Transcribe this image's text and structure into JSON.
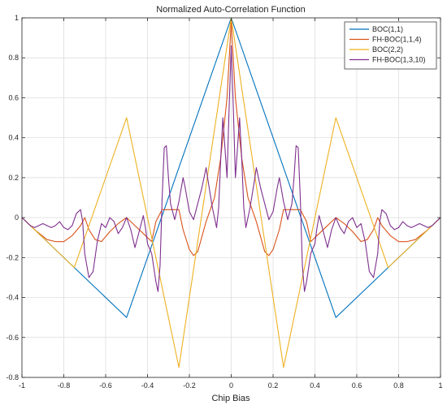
{
  "chart_data": {
    "type": "line",
    "title": "Normalized Auto-Correlation Function",
    "xlabel": "Chip Bias",
    "ylabel": "",
    "xlim": [
      -1,
      1
    ],
    "ylim": [
      -0.8,
      1
    ],
    "xticks": [
      -1,
      -0.8,
      -0.6,
      -0.4,
      -0.2,
      0,
      0.2,
      0.4,
      0.6,
      0.8,
      1
    ],
    "xticklabels": [
      "-1",
      "-0.8",
      "-0.6",
      "-0.4",
      "-0.2",
      "0",
      "0.2",
      "0.4",
      "0.6",
      "0.8",
      "1"
    ],
    "yticks": [
      -0.8,
      -0.6,
      -0.4,
      -0.2,
      0,
      0.2,
      0.4,
      0.6,
      0.8,
      1
    ],
    "yticklabels": [
      "-0.8",
      "-0.6",
      "-0.4",
      "-0.2",
      "0",
      "0.2",
      "0.4",
      "0.6",
      "0.8",
      "1"
    ],
    "grid": true,
    "legend_position": "top-right",
    "series": [
      {
        "name": "BOC(1,1)",
        "color": "#0072BD",
        "points": [
          [
            -1,
            0
          ],
          [
            -0.5,
            -0.5
          ],
          [
            0,
            1
          ],
          [
            0.5,
            -0.5
          ],
          [
            1,
            0
          ]
        ]
      },
      {
        "name": "FH-BOC(1,1,4)",
        "color": "#D95319",
        "points": [
          [
            -1,
            0
          ],
          [
            -0.94,
            -0.06
          ],
          [
            -0.88,
            -0.11
          ],
          [
            -0.84,
            -0.12
          ],
          [
            -0.8,
            -0.12
          ],
          [
            -0.76,
            -0.09
          ],
          [
            -0.72,
            -0.04
          ],
          [
            -0.7,
            0
          ],
          [
            -0.68,
            -0.06
          ],
          [
            -0.65,
            -0.11
          ],
          [
            -0.62,
            -0.12
          ],
          [
            -0.58,
            -0.07
          ],
          [
            -0.54,
            -0.03
          ],
          [
            -0.5,
            0
          ],
          [
            -0.46,
            -0.04
          ],
          [
            -0.42,
            -0.08
          ],
          [
            -0.38,
            -0.12
          ],
          [
            -0.36,
            -0.02
          ],
          [
            -0.33,
            0.04
          ],
          [
            -0.3,
            0.04
          ],
          [
            -0.27,
            0.04
          ],
          [
            -0.25,
            0.04
          ],
          [
            -0.23,
            -0.06
          ],
          [
            -0.2,
            -0.16
          ],
          [
            -0.18,
            -0.19
          ],
          [
            -0.16,
            -0.17
          ],
          [
            -0.12,
            -0.02
          ],
          [
            -0.08,
            0.1
          ],
          [
            -0.05,
            0.3
          ],
          [
            -0.02,
            0.6
          ],
          [
            0,
            0.98
          ],
          [
            0.02,
            0.6
          ],
          [
            0.05,
            0.3
          ],
          [
            0.08,
            0.1
          ],
          [
            0.12,
            -0.02
          ],
          [
            0.16,
            -0.17
          ],
          [
            0.18,
            -0.19
          ],
          [
            0.2,
            -0.16
          ],
          [
            0.23,
            -0.06
          ],
          [
            0.25,
            0.04
          ],
          [
            0.27,
            0.04
          ],
          [
            0.3,
            0.04
          ],
          [
            0.33,
            0.04
          ],
          [
            0.36,
            -0.02
          ],
          [
            0.38,
            -0.12
          ],
          [
            0.42,
            -0.08
          ],
          [
            0.46,
            -0.04
          ],
          [
            0.5,
            0
          ],
          [
            0.54,
            -0.03
          ],
          [
            0.58,
            -0.07
          ],
          [
            0.62,
            -0.12
          ],
          [
            0.65,
            -0.11
          ],
          [
            0.68,
            -0.06
          ],
          [
            0.7,
            0
          ],
          [
            0.72,
            -0.04
          ],
          [
            0.76,
            -0.09
          ],
          [
            0.8,
            -0.12
          ],
          [
            0.84,
            -0.12
          ],
          [
            0.88,
            -0.11
          ],
          [
            0.94,
            -0.06
          ],
          [
            1,
            0
          ]
        ]
      },
      {
        "name": "BOC(2,2)",
        "color": "#EDB120",
        "points": [
          [
            -1,
            0
          ],
          [
            -0.75,
            -0.25
          ],
          [
            -0.5,
            0.5
          ],
          [
            -0.25,
            -0.75
          ],
          [
            0,
            1
          ],
          [
            0.25,
            -0.75
          ],
          [
            0.5,
            0.5
          ],
          [
            0.75,
            -0.25
          ],
          [
            1,
            0
          ]
        ]
      },
      {
        "name": "FH-BOC(1,3,10)",
        "color": "#7E2F8E",
        "points": [
          [
            -1,
            0
          ],
          [
            -0.98,
            -0.02
          ],
          [
            -0.96,
            -0.04
          ],
          [
            -0.94,
            -0.05
          ],
          [
            -0.92,
            -0.04
          ],
          [
            -0.9,
            -0.03
          ],
          [
            -0.88,
            -0.04
          ],
          [
            -0.86,
            -0.05
          ],
          [
            -0.84,
            -0.04
          ],
          [
            -0.82,
            -0.02
          ],
          [
            -0.8,
            -0.05
          ],
          [
            -0.78,
            -0.06
          ],
          [
            -0.76,
            -0.04
          ],
          [
            -0.74,
            0.02
          ],
          [
            -0.72,
            0.04
          ],
          [
            -0.71,
            -0.02
          ],
          [
            -0.7,
            -0.18
          ],
          [
            -0.68,
            -0.3
          ],
          [
            -0.66,
            -0.27
          ],
          [
            -0.64,
            -0.12
          ],
          [
            -0.62,
            -0.03
          ],
          [
            -0.6,
            -0.05
          ],
          [
            -0.58,
            0.0
          ],
          [
            -0.56,
            -0.02
          ],
          [
            -0.54,
            -0.08
          ],
          [
            -0.52,
            -0.05
          ],
          [
            -0.5,
            0.0
          ],
          [
            -0.48,
            -0.06
          ],
          [
            -0.46,
            -0.15
          ],
          [
            -0.44,
            -0.07
          ],
          [
            -0.42,
            0.01
          ],
          [
            -0.41,
            -0.05
          ],
          [
            -0.4,
            -0.13
          ],
          [
            -0.38,
            -0.18
          ],
          [
            -0.36,
            -0.32
          ],
          [
            -0.35,
            -0.37
          ],
          [
            -0.34,
            -0.24
          ],
          [
            -0.33,
            0.1
          ],
          [
            -0.32,
            0.35
          ],
          [
            -0.31,
            0.36
          ],
          [
            -0.3,
            0.2
          ],
          [
            -0.29,
            0.07
          ],
          [
            -0.27,
            -0.01
          ],
          [
            -0.25,
            0.08
          ],
          [
            -0.23,
            0.2
          ],
          [
            -0.22,
            0.15
          ],
          [
            -0.2,
            0.03
          ],
          [
            -0.18,
            -0.01
          ],
          [
            -0.16,
            0.07
          ],
          [
            -0.14,
            0.15
          ],
          [
            -0.12,
            0.25
          ],
          [
            -0.11,
            0.18
          ],
          [
            -0.09,
            0.05
          ],
          [
            -0.07,
            -0.05
          ],
          [
            -0.06,
            0.05
          ],
          [
            -0.05,
            0.3
          ],
          [
            -0.04,
            0.5
          ],
          [
            -0.03,
            0.35
          ],
          [
            -0.02,
            0.2
          ],
          [
            -0.01,
            0.55
          ],
          [
            0,
            0.86
          ],
          [
            0.01,
            0.55
          ],
          [
            0.02,
            0.2
          ],
          [
            0.03,
            0.35
          ],
          [
            0.04,
            0.5
          ],
          [
            0.05,
            0.3
          ],
          [
            0.06,
            0.05
          ],
          [
            0.07,
            -0.05
          ],
          [
            0.09,
            0.05
          ],
          [
            0.11,
            0.18
          ],
          [
            0.12,
            0.25
          ],
          [
            0.14,
            0.15
          ],
          [
            0.16,
            0.07
          ],
          [
            0.18,
            -0.01
          ],
          [
            0.2,
            0.03
          ],
          [
            0.22,
            0.15
          ],
          [
            0.23,
            0.2
          ],
          [
            0.25,
            0.08
          ],
          [
            0.27,
            -0.01
          ],
          [
            0.29,
            0.07
          ],
          [
            0.3,
            0.2
          ],
          [
            0.31,
            0.36
          ],
          [
            0.32,
            0.35
          ],
          [
            0.33,
            0.1
          ],
          [
            0.34,
            -0.24
          ],
          [
            0.35,
            -0.37
          ],
          [
            0.36,
            -0.32
          ],
          [
            0.38,
            -0.18
          ],
          [
            0.4,
            -0.13
          ],
          [
            0.41,
            -0.05
          ],
          [
            0.42,
            0.01
          ],
          [
            0.44,
            -0.07
          ],
          [
            0.46,
            -0.15
          ],
          [
            0.48,
            -0.06
          ],
          [
            0.5,
            0.0
          ],
          [
            0.52,
            -0.05
          ],
          [
            0.54,
            -0.08
          ],
          [
            0.56,
            -0.02
          ],
          [
            0.58,
            0.0
          ],
          [
            0.6,
            -0.05
          ],
          [
            0.62,
            -0.03
          ],
          [
            0.64,
            -0.12
          ],
          [
            0.66,
            -0.27
          ],
          [
            0.68,
            -0.3
          ],
          [
            0.7,
            -0.18
          ],
          [
            0.71,
            -0.02
          ],
          [
            0.72,
            0.04
          ],
          [
            0.74,
            0.02
          ],
          [
            0.76,
            -0.04
          ],
          [
            0.78,
            -0.06
          ],
          [
            0.8,
            -0.05
          ],
          [
            0.82,
            -0.02
          ],
          [
            0.84,
            -0.04
          ],
          [
            0.86,
            -0.05
          ],
          [
            0.88,
            -0.04
          ],
          [
            0.9,
            -0.03
          ],
          [
            0.92,
            -0.04
          ],
          [
            0.94,
            -0.05
          ],
          [
            0.96,
            -0.04
          ],
          [
            0.98,
            -0.02
          ],
          [
            1,
            0
          ]
        ]
      }
    ]
  }
}
